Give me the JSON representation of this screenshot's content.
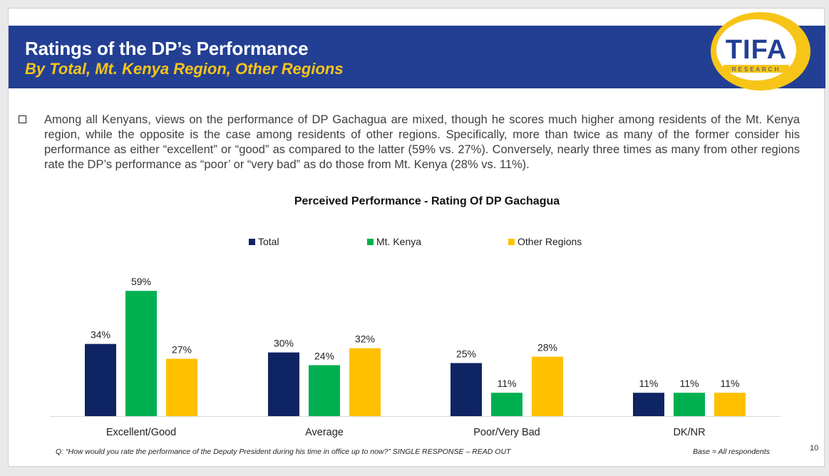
{
  "header": {
    "title": "Ratings of the DP’s Performance",
    "subtitle": "By Total, Mt. Kenya Region, Other Regions",
    "logo_text": "TIFA",
    "logo_subtext": "RESEARCH"
  },
  "bullet_text": "Among all Kenyans, views on the performance of DP Gachagua are mixed, though he scores much higher among residents of the Mt. Kenya region, while the opposite is the case among residents of other regions.  Specifically, more than twice as many of the former consider his performance as either “excellent” or “good” as compared to the latter (59% vs. 27%).  Conversely, nearly three times as many from other regions rate the DP’s performance as “poor’ or “very bad” as do those from Mt. Kenya (28% vs. 11%).",
  "chart_data": {
    "type": "bar",
    "title": "Perceived Performance - Rating Of DP Gachagua",
    "categories": [
      "Excellent/Good",
      "Average",
      "Poor/Very Bad",
      "DK/NR"
    ],
    "series": [
      {
        "name": "Total",
        "color": "#0f2462",
        "values": [
          34,
          30,
          25,
          11
        ]
      },
      {
        "name": "Mt. Kenya",
        "color": "#00b050",
        "values": [
          59,
          24,
          11,
          11
        ]
      },
      {
        "name": "Other Regions",
        "color": "#ffc000",
        "values": [
          27,
          32,
          28,
          11
        ]
      }
    ],
    "value_suffix": "%",
    "grid": false,
    "legend_position": "top"
  },
  "footnote": "Q: “How would you rate the performance of the Deputy President during his time in office up to now?” SINGLE RESPONSE – READ OUT",
  "base_note": "Base = All respondents",
  "page_number": "10",
  "colors": {
    "header_bg": "#233f94",
    "accent_yellow": "#f7c518"
  }
}
